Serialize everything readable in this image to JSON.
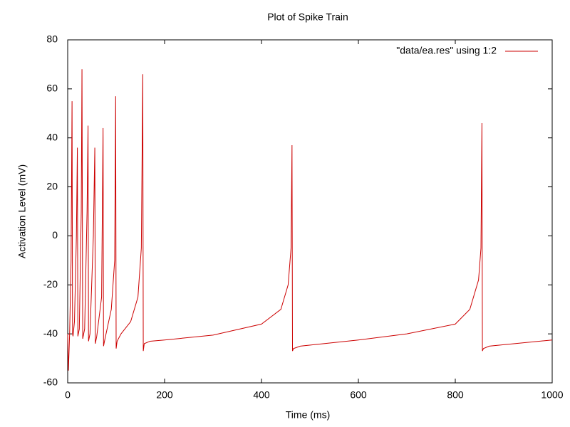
{
  "chart_data": {
    "type": "line",
    "title": "Plot of Spike Train",
    "x_label": "Time (ms)",
    "y_label": "Activation Level (mV)",
    "x": [
      0,
      1.5,
      4,
      7,
      9,
      10,
      11,
      14,
      18,
      20,
      21,
      24,
      28,
      29.5,
      31,
      35,
      40,
      42,
      43,
      46,
      53,
      56,
      57,
      60,
      70,
      73,
      74,
      77,
      90,
      97,
      99,
      100,
      102,
      110,
      130,
      145,
      152,
      155,
      156,
      158,
      170,
      200,
      300,
      400,
      440,
      455,
      461,
      463,
      464,
      466,
      480,
      600,
      700,
      800,
      830,
      848,
      853,
      855,
      856,
      858,
      870,
      1000
    ],
    "series": [
      {
        "name": "\"data/ea.res\" using 1:2",
        "color": "#cc0000",
        "values": [
          -40,
          -55,
          -40,
          -10,
          55,
          -40,
          -41,
          -35,
          0,
          36,
          -41,
          -38,
          10,
          68,
          -42,
          -38,
          10,
          45,
          -43,
          -40,
          0,
          36,
          -44,
          -41,
          -25,
          44,
          -45,
          -42,
          -30,
          -10,
          57,
          -46,
          -43,
          -40,
          -35,
          -25,
          -5,
          66,
          -47,
          -44,
          -43,
          -42.5,
          -40.5,
          -36,
          -30,
          -20,
          -5,
          37,
          -47,
          -46,
          -45,
          -42.5,
          -40,
          -36,
          -30,
          -18,
          -5,
          46,
          -47,
          -46,
          -45,
          -42.5
        ]
      }
    ],
    "xlim": [
      0,
      1000
    ],
    "xticks": [
      0,
      200,
      400,
      600,
      800,
      1000
    ],
    "ylim": [
      -60,
      80
    ],
    "yticks": [
      -60,
      -40,
      -20,
      0,
      20,
      40,
      60,
      80
    ],
    "legend": "top-right"
  }
}
